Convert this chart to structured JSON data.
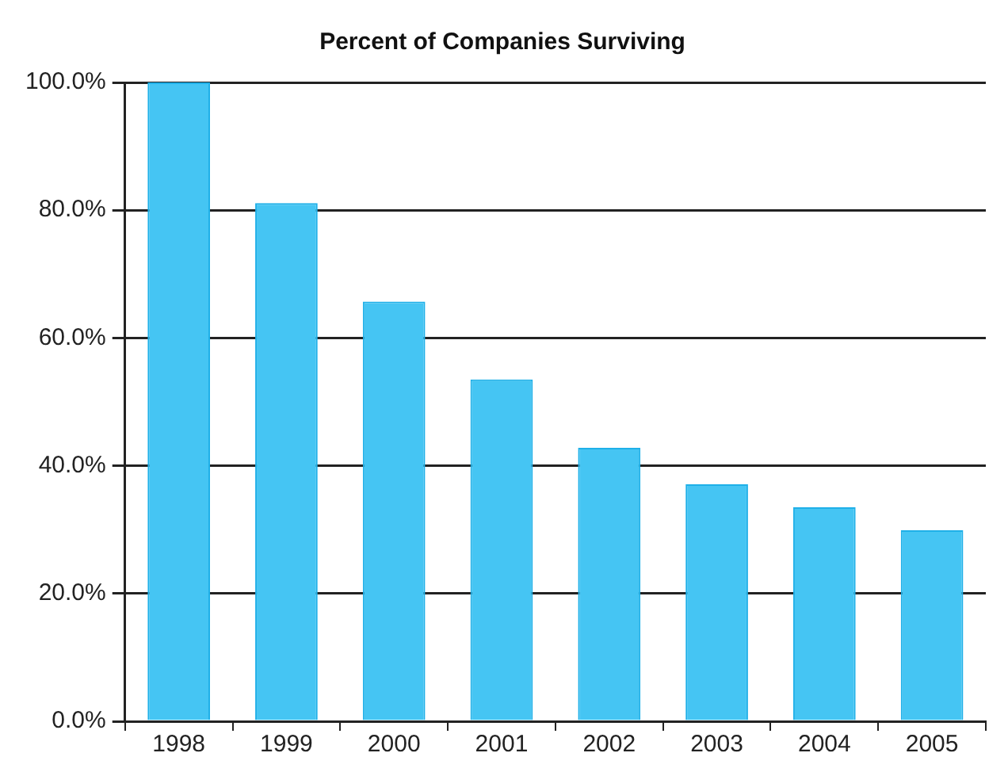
{
  "chart_data": {
    "type": "bar",
    "title": "Percent of Companies Surviving",
    "categories": [
      "1998",
      "1999",
      "2000",
      "2001",
      "2002",
      "2003",
      "2004",
      "2005"
    ],
    "values": [
      100,
      81.1,
      65.7,
      53.5,
      42.8,
      37.1,
      33.5,
      29.9
    ],
    "color": "#45c5f3",
    "ylim": [
      0,
      100
    ],
    "yticks": [
      {
        "value": 0,
        "label": "0.0%"
      },
      {
        "value": 20,
        "label": "20.0%"
      },
      {
        "value": 40,
        "label": "40.0%"
      },
      {
        "value": 60,
        "label": "60.0%"
      },
      {
        "value": 80,
        "label": "80.0%"
      },
      {
        "value": 100,
        "label": "100.0%"
      }
    ],
    "grid": "y",
    "legend": false
  }
}
